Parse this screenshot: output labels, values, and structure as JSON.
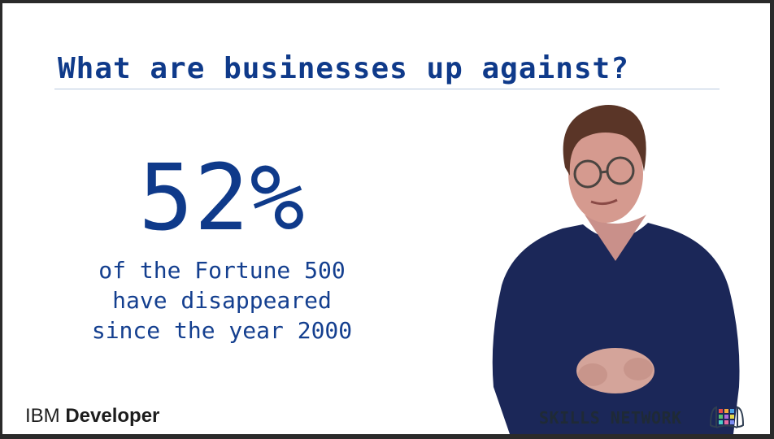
{
  "slide": {
    "title": "What are businesses up against?",
    "stat_value": "52%",
    "stat_lines": [
      "of the Fortune 500",
      "have disappeared",
      "since the year 2000"
    ]
  },
  "branding": {
    "ibm": "IBM",
    "developer": "Developer",
    "skills_network": "SKILLS NETWORK"
  },
  "colors": {
    "accent_blue": "#0f3a8a",
    "background": "#ffffff",
    "sweater_navy": "#1b2758"
  },
  "icons": {
    "skills_logo": "skills-network-logo-icon"
  }
}
